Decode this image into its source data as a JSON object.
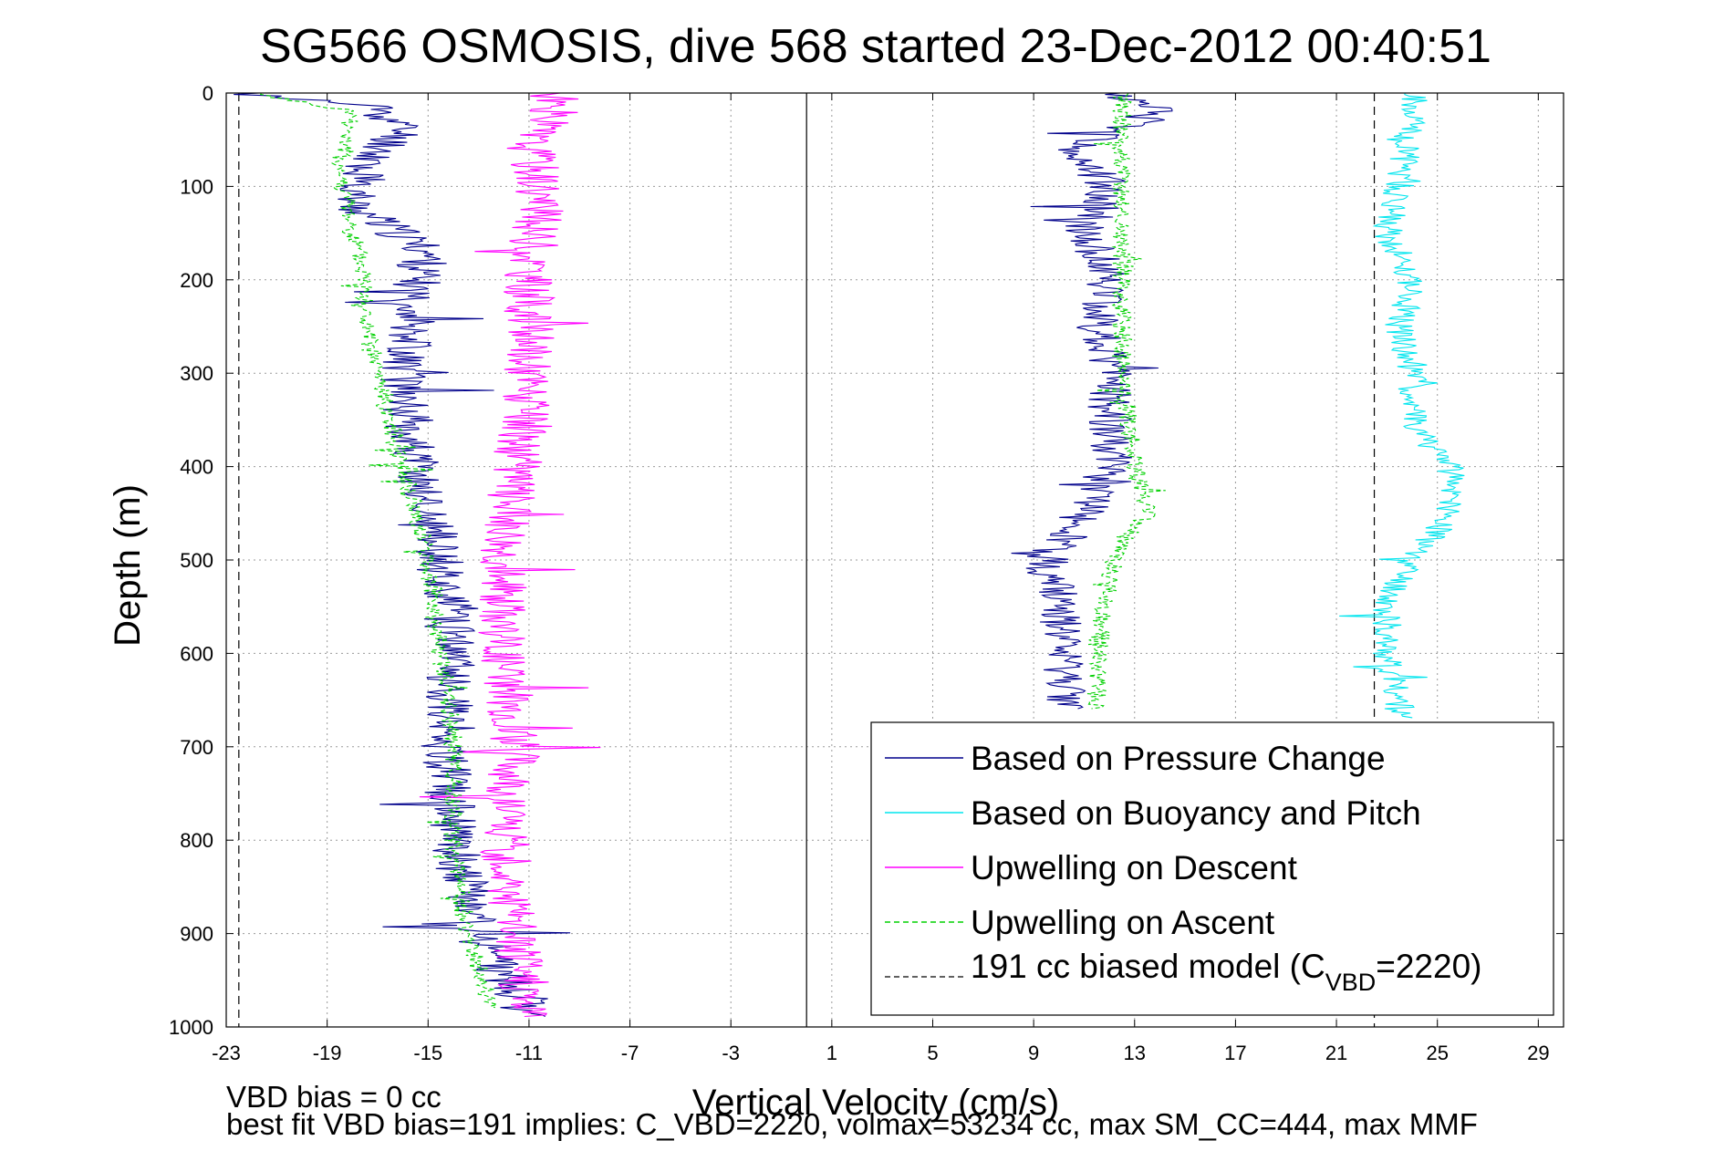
{
  "chart_data": {
    "type": "line",
    "title": "SG566 OSMOSIS, dive 568 started 23-Dec-2012 00:40:51",
    "xlabel": "Vertical Velocity (cm/s)",
    "ylabel": "Depth (m)",
    "xlim": [
      -23,
      30
    ],
    "ylim": [
      0,
      1000
    ],
    "y_reversed": true,
    "grid": true,
    "xticks": [
      -23,
      -19,
      -15,
      -11,
      -7,
      -3,
      1,
      5,
      9,
      13,
      17,
      21,
      25,
      29
    ],
    "yticks": [
      0,
      100,
      200,
      300,
      400,
      500,
      600,
      700,
      800,
      900,
      1000
    ],
    "zero_line_x": 0,
    "legend_position": "bottom-right",
    "legend": [
      {
        "label": "Based on Pressure Change",
        "color": "#00008b",
        "style": "solid"
      },
      {
        "label": "Based on Buoyancy and Pitch",
        "color": "#00e5ee",
        "style": "solid"
      },
      {
        "label": "Upwelling on Descent",
        "color": "#ff00ff",
        "style": "solid"
      },
      {
        "label": "Upwelling on Ascent",
        "color": "#00d000",
        "style": "dashed"
      },
      {
        "label_prefix": "191 cc biased model (C",
        "label_sub": "VBD",
        "label_suffix": "=2220)",
        "color": "#000000",
        "style": "dashed"
      }
    ],
    "series": [
      {
        "name": "Based on Pressure Change",
        "color": "#00008b",
        "seed": 11,
        "jitter": 1.0,
        "profile": [
          {
            "d": 0,
            "v": -22.5
          },
          {
            "d": 15,
            "v": -17
          },
          {
            "d": 40,
            "v": -16
          },
          {
            "d": 80,
            "v": -17.5
          },
          {
            "d": 120,
            "v": -18
          },
          {
            "d": 170,
            "v": -15
          },
          {
            "d": 200,
            "v": -15.5
          },
          {
            "d": 250,
            "v": -15.5
          },
          {
            "d": 300,
            "v": -16
          },
          {
            "d": 400,
            "v": -15.5
          },
          {
            "d": 500,
            "v": -14.5
          },
          {
            "d": 600,
            "v": -14
          },
          {
            "d": 700,
            "v": -14.3
          },
          {
            "d": 800,
            "v": -14
          },
          {
            "d": 900,
            "v": -13
          },
          {
            "d": 990,
            "v": -11
          }
        ]
      },
      {
        "name": "Based on Pressure Change",
        "color": "#00008b",
        "seed": 12,
        "jitter": 0.9,
        "profile": [
          {
            "d": 0,
            "v": 12
          },
          {
            "d": 20,
            "v": 14
          },
          {
            "d": 60,
            "v": 10.5
          },
          {
            "d": 100,
            "v": 12
          },
          {
            "d": 150,
            "v": 11
          },
          {
            "d": 200,
            "v": 12
          },
          {
            "d": 250,
            "v": 11.5
          },
          {
            "d": 300,
            "v": 12
          },
          {
            "d": 350,
            "v": 12
          },
          {
            "d": 400,
            "v": 12
          },
          {
            "d": 450,
            "v": 11
          },
          {
            "d": 500,
            "v": 9.5
          },
          {
            "d": 550,
            "v": 10
          },
          {
            "d": 600,
            "v": 10
          },
          {
            "d": 660,
            "v": 10.5
          }
        ]
      },
      {
        "name": "Based on Buoyancy and Pitch",
        "color": "#00e5ee",
        "seed": 21,
        "jitter": 0.6,
        "profile": [
          {
            "d": 0,
            "v": 24
          },
          {
            "d": 30,
            "v": 24
          },
          {
            "d": 100,
            "v": 23.5
          },
          {
            "d": 150,
            "v": 23
          },
          {
            "d": 200,
            "v": 24
          },
          {
            "d": 250,
            "v": 23.5
          },
          {
            "d": 300,
            "v": 24
          },
          {
            "d": 350,
            "v": 24
          },
          {
            "d": 400,
            "v": 25.5
          },
          {
            "d": 450,
            "v": 25.5
          },
          {
            "d": 500,
            "v": 24
          },
          {
            "d": 550,
            "v": 23
          },
          {
            "d": 600,
            "v": 23
          },
          {
            "d": 650,
            "v": 23.5
          },
          {
            "d": 670,
            "v": 23.5
          }
        ]
      },
      {
        "name": "Upwelling on Descent",
        "color": "#ff00ff",
        "seed": 31,
        "jitter": 1.0,
        "profile": [
          {
            "d": 0,
            "v": -10
          },
          {
            "d": 20,
            "v": -10
          },
          {
            "d": 50,
            "v": -11
          },
          {
            "d": 100,
            "v": -10.5
          },
          {
            "d": 200,
            "v": -11
          },
          {
            "d": 300,
            "v": -11
          },
          {
            "d": 400,
            "v": -11.5
          },
          {
            "d": 500,
            "v": -12
          },
          {
            "d": 600,
            "v": -12
          },
          {
            "d": 700,
            "v": -11.5
          },
          {
            "d": 800,
            "v": -12
          },
          {
            "d": 900,
            "v": -11.5
          },
          {
            "d": 990,
            "v": -11
          }
        ]
      },
      {
        "name": "Upwelling on Ascent",
        "color": "#00d000",
        "dashed": true,
        "seed": 41,
        "jitter": 0.4,
        "profile": [
          {
            "d": 0,
            "v": -22
          },
          {
            "d": 20,
            "v": -18
          },
          {
            "d": 80,
            "v": -18.5
          },
          {
            "d": 150,
            "v": -18
          },
          {
            "d": 200,
            "v": -17.5
          },
          {
            "d": 250,
            "v": -17.5
          },
          {
            "d": 300,
            "v": -17
          },
          {
            "d": 400,
            "v": -16
          },
          {
            "d": 500,
            "v": -15
          },
          {
            "d": 600,
            "v": -14.5
          },
          {
            "d": 700,
            "v": -14
          },
          {
            "d": 800,
            "v": -14
          },
          {
            "d": 900,
            "v": -13.5
          },
          {
            "d": 980,
            "v": -12.5
          }
        ]
      },
      {
        "name": "Upwelling on Ascent",
        "color": "#00d000",
        "dashed": true,
        "seed": 42,
        "jitter": 0.4,
        "profile": [
          {
            "d": 0,
            "v": 12.5
          },
          {
            "d": 50,
            "v": 12.5
          },
          {
            "d": 100,
            "v": 12.5
          },
          {
            "d": 200,
            "v": 12.5
          },
          {
            "d": 300,
            "v": 12.5
          },
          {
            "d": 400,
            "v": 13
          },
          {
            "d": 450,
            "v": 13.5
          },
          {
            "d": 480,
            "v": 12.5
          },
          {
            "d": 520,
            "v": 12
          },
          {
            "d": 600,
            "v": 11.5
          },
          {
            "d": 660,
            "v": 11.5
          }
        ]
      }
    ],
    "model_lines_x": [
      -22.5,
      22.5
    ]
  },
  "footer": {
    "line1": "VBD bias = 0 cc",
    "line2": "best fit VBD bias=191 implies: C_VBD=2220, volmax=53234 cc, max SM_CC=444, max MMF"
  }
}
